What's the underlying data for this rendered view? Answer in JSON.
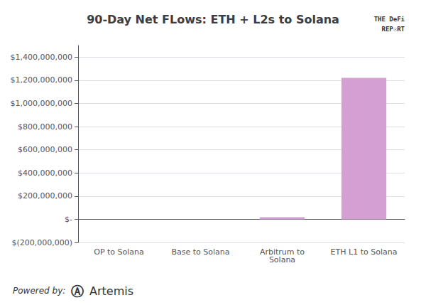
{
  "chart_data": {
    "type": "bar",
    "title": "90-Day Net FLows: ETH + L2s to Solana",
    "categories": [
      "OP to Solana",
      "Base to Solana",
      "Arbitrum to\nSolana",
      "ETH L1 to Solana"
    ],
    "values": [
      0,
      0,
      18000000,
      1220000000
    ],
    "color": "#d4a0d4",
    "ylim": [
      -200000000,
      1500000000
    ],
    "yticks": [
      {
        "value": -200000000,
        "label": "$(200,000,000)"
      },
      {
        "value": 0,
        "label": "$-"
      },
      {
        "value": 200000000,
        "label": "$200,000,000"
      },
      {
        "value": 400000000,
        "label": "$400,000,000"
      },
      {
        "value": 600000000,
        "label": "$600,000,000"
      },
      {
        "value": 800000000,
        "label": "$800,000,000"
      },
      {
        "value": 1000000000,
        "label": "$1,000,000,000"
      },
      {
        "value": 1200000000,
        "label": "$1,200,000,000"
      },
      {
        "value": 1400000000,
        "label": "$1,400,000,000"
      }
    ],
    "grid": true,
    "annotations": [
      "Powered by:",
      "Ⓐ",
      "Artemis",
      "THE DeFi",
      "REP☉RT"
    ]
  }
}
